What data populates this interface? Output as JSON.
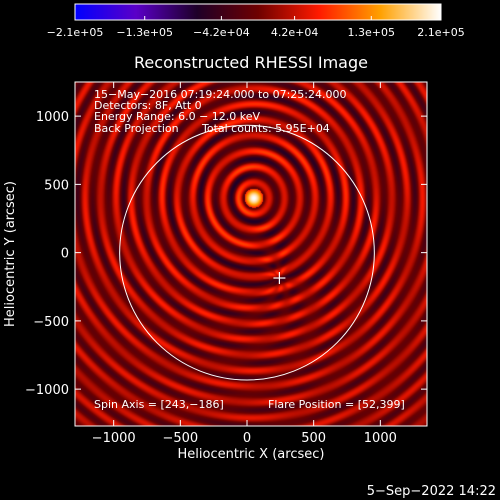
{
  "chart_data": {
    "type": "heatmap",
    "title": "Reconstructed RHESSI Image",
    "xlabel": "Heliocentric X (arcsec)",
    "ylabel": "Heliocentric Y (arcsec)",
    "xlim": [
      -1290,
      1350
    ],
    "ylim": [
      -1270,
      1250
    ],
    "x_ticks": [
      -1000,
      -500,
      0,
      500,
      1000
    ],
    "y_ticks": [
      -1000,
      -500,
      0,
      500,
      1000
    ],
    "x_tick_labels": [
      "−1000",
      "−500",
      "0",
      "500",
      "1000"
    ],
    "y_tick_labels": [
      "−1000",
      "−500",
      "0",
      "500",
      "1000"
    ],
    "colorbar": {
      "min": -210000,
      "max": 210000,
      "tick_values": [
        -210000,
        -130000,
        -42000,
        42000,
        130000,
        210000
      ],
      "tick_labels": [
        "−2.1e+05",
        "−1.3e+05",
        "−4.2e+04",
        "4.2e+04",
        "1.3e+05",
        "2.1e+05"
      ],
      "colors": [
        "#0000ff",
        "#5a00c8",
        "#1e0028",
        "#6e0000",
        "#ff1a00",
        "#ffa000",
        "#ffffff"
      ]
    },
    "info_lines": [
      "15−May−2016 07:19:24.000 to 07:25:24.000",
      "Detectors: 8F, Att 0",
      "Energy Range: 6.0 − 12.0 keV",
      "Back Projection",
      "Total counts: 5.95E+04"
    ],
    "spin_axis_label": "Spin Axis = [243,−186]",
    "spin_axis": [
      243,
      -186
    ],
    "flare_position_label": "Flare Position = [52,399]",
    "flare_position": [
      52,
      399
    ],
    "solar_limb": {
      "center": [
        0,
        0
      ],
      "radius_arcsec": 955
    },
    "peak_max": 210000,
    "timestamp": "5−Sep−2022 14:22"
  }
}
